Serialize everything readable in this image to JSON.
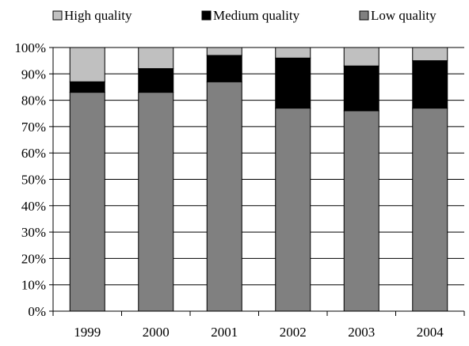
{
  "chart_data": {
    "type": "bar",
    "stacked": true,
    "categories": [
      "1999",
      "2000",
      "2001",
      "2002",
      "2003",
      "2004"
    ],
    "series": [
      {
        "name": "Low quality",
        "color": "#808080",
        "values": [
          83,
          83,
          87,
          77,
          76,
          77
        ]
      },
      {
        "name": "Medium quality",
        "color": "#000000",
        "values": [
          4,
          9,
          10,
          19,
          17,
          18
        ]
      },
      {
        "name": "High quality",
        "color": "#c0c0c0",
        "values": [
          13,
          8,
          3,
          4,
          7,
          5
        ]
      }
    ],
    "legend_order": [
      "High quality",
      "Medium quality",
      "Low quality"
    ],
    "legend_position": "top",
    "ylim": [
      0,
      100
    ],
    "yticks": [
      0,
      10,
      20,
      30,
      40,
      50,
      60,
      70,
      80,
      90,
      100
    ],
    "ytick_suffix": "%",
    "gridlines": "horizontal",
    "title": "",
    "xlabel": "",
    "ylabel": ""
  }
}
